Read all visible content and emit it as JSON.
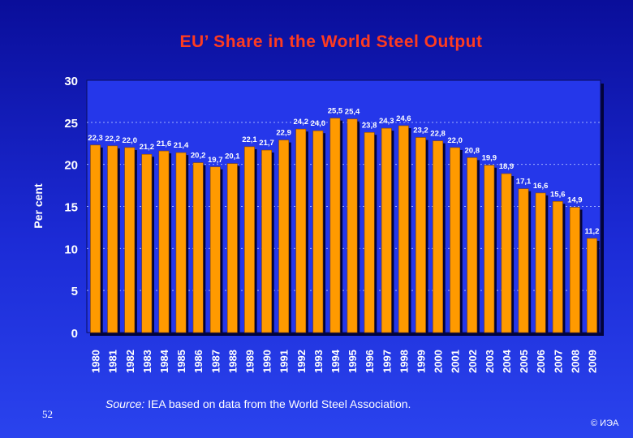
{
  "page": {
    "title": "EU’ Share in the World Steel Output",
    "source_label": "Source:",
    "source_text": " IEA based on data from the World Steel Association.",
    "page_number": "52",
    "copyright": "© ИЭА"
  },
  "colors": {
    "bar": "#ff9a00",
    "bar_stroke": "#8a4a00",
    "shadow": "#02033a",
    "plot_bg": "#2537ea",
    "grid": "#9fb0ff",
    "tick": "#ffffff",
    "label": "#ffffff"
  },
  "chart_data": {
    "type": "bar",
    "ylabel": "Per cent",
    "ylim": [
      0,
      30
    ],
    "yticks": [
      0,
      5,
      10,
      15,
      20,
      25,
      30
    ],
    "grid": true,
    "categories": [
      "1980",
      "1981",
      "1982",
      "1983",
      "1984",
      "1985",
      "1986",
      "1987",
      "1988",
      "1989",
      "1990",
      "1991",
      "1992",
      "1993",
      "1994",
      "1995",
      "1996",
      "1997",
      "1998",
      "1999",
      "2000",
      "2001",
      "2002",
      "2003",
      "2004",
      "2005",
      "2006",
      "2007",
      "2008",
      "2009"
    ],
    "values": [
      22.3,
      22.2,
      22.0,
      21.2,
      21.6,
      21.4,
      20.2,
      19.7,
      20.1,
      22.1,
      21.7,
      22.9,
      24.2,
      24.0,
      25.5,
      25.4,
      23.8,
      24.3,
      24.6,
      23.2,
      22.8,
      22.0,
      20.8,
      19.9,
      18.9,
      17.1,
      16.6,
      15.6,
      14.9,
      11.2
    ],
    "data_labels": [
      "22,3",
      "22,2",
      "22,0",
      "21,2",
      "21,6",
      "21,4",
      "20,2",
      "19,7",
      "20,1",
      "22,1",
      "21,7",
      "22,9",
      "24,2",
      "24,0",
      "25,5",
      "25,4",
      "23,8",
      "24,3",
      "24,6",
      "23,2",
      "22,8",
      "22,0",
      "20,8",
      "19,9",
      "18,9",
      "17,1",
      "16,6",
      "15,6",
      "14,9",
      "11,2"
    ]
  }
}
